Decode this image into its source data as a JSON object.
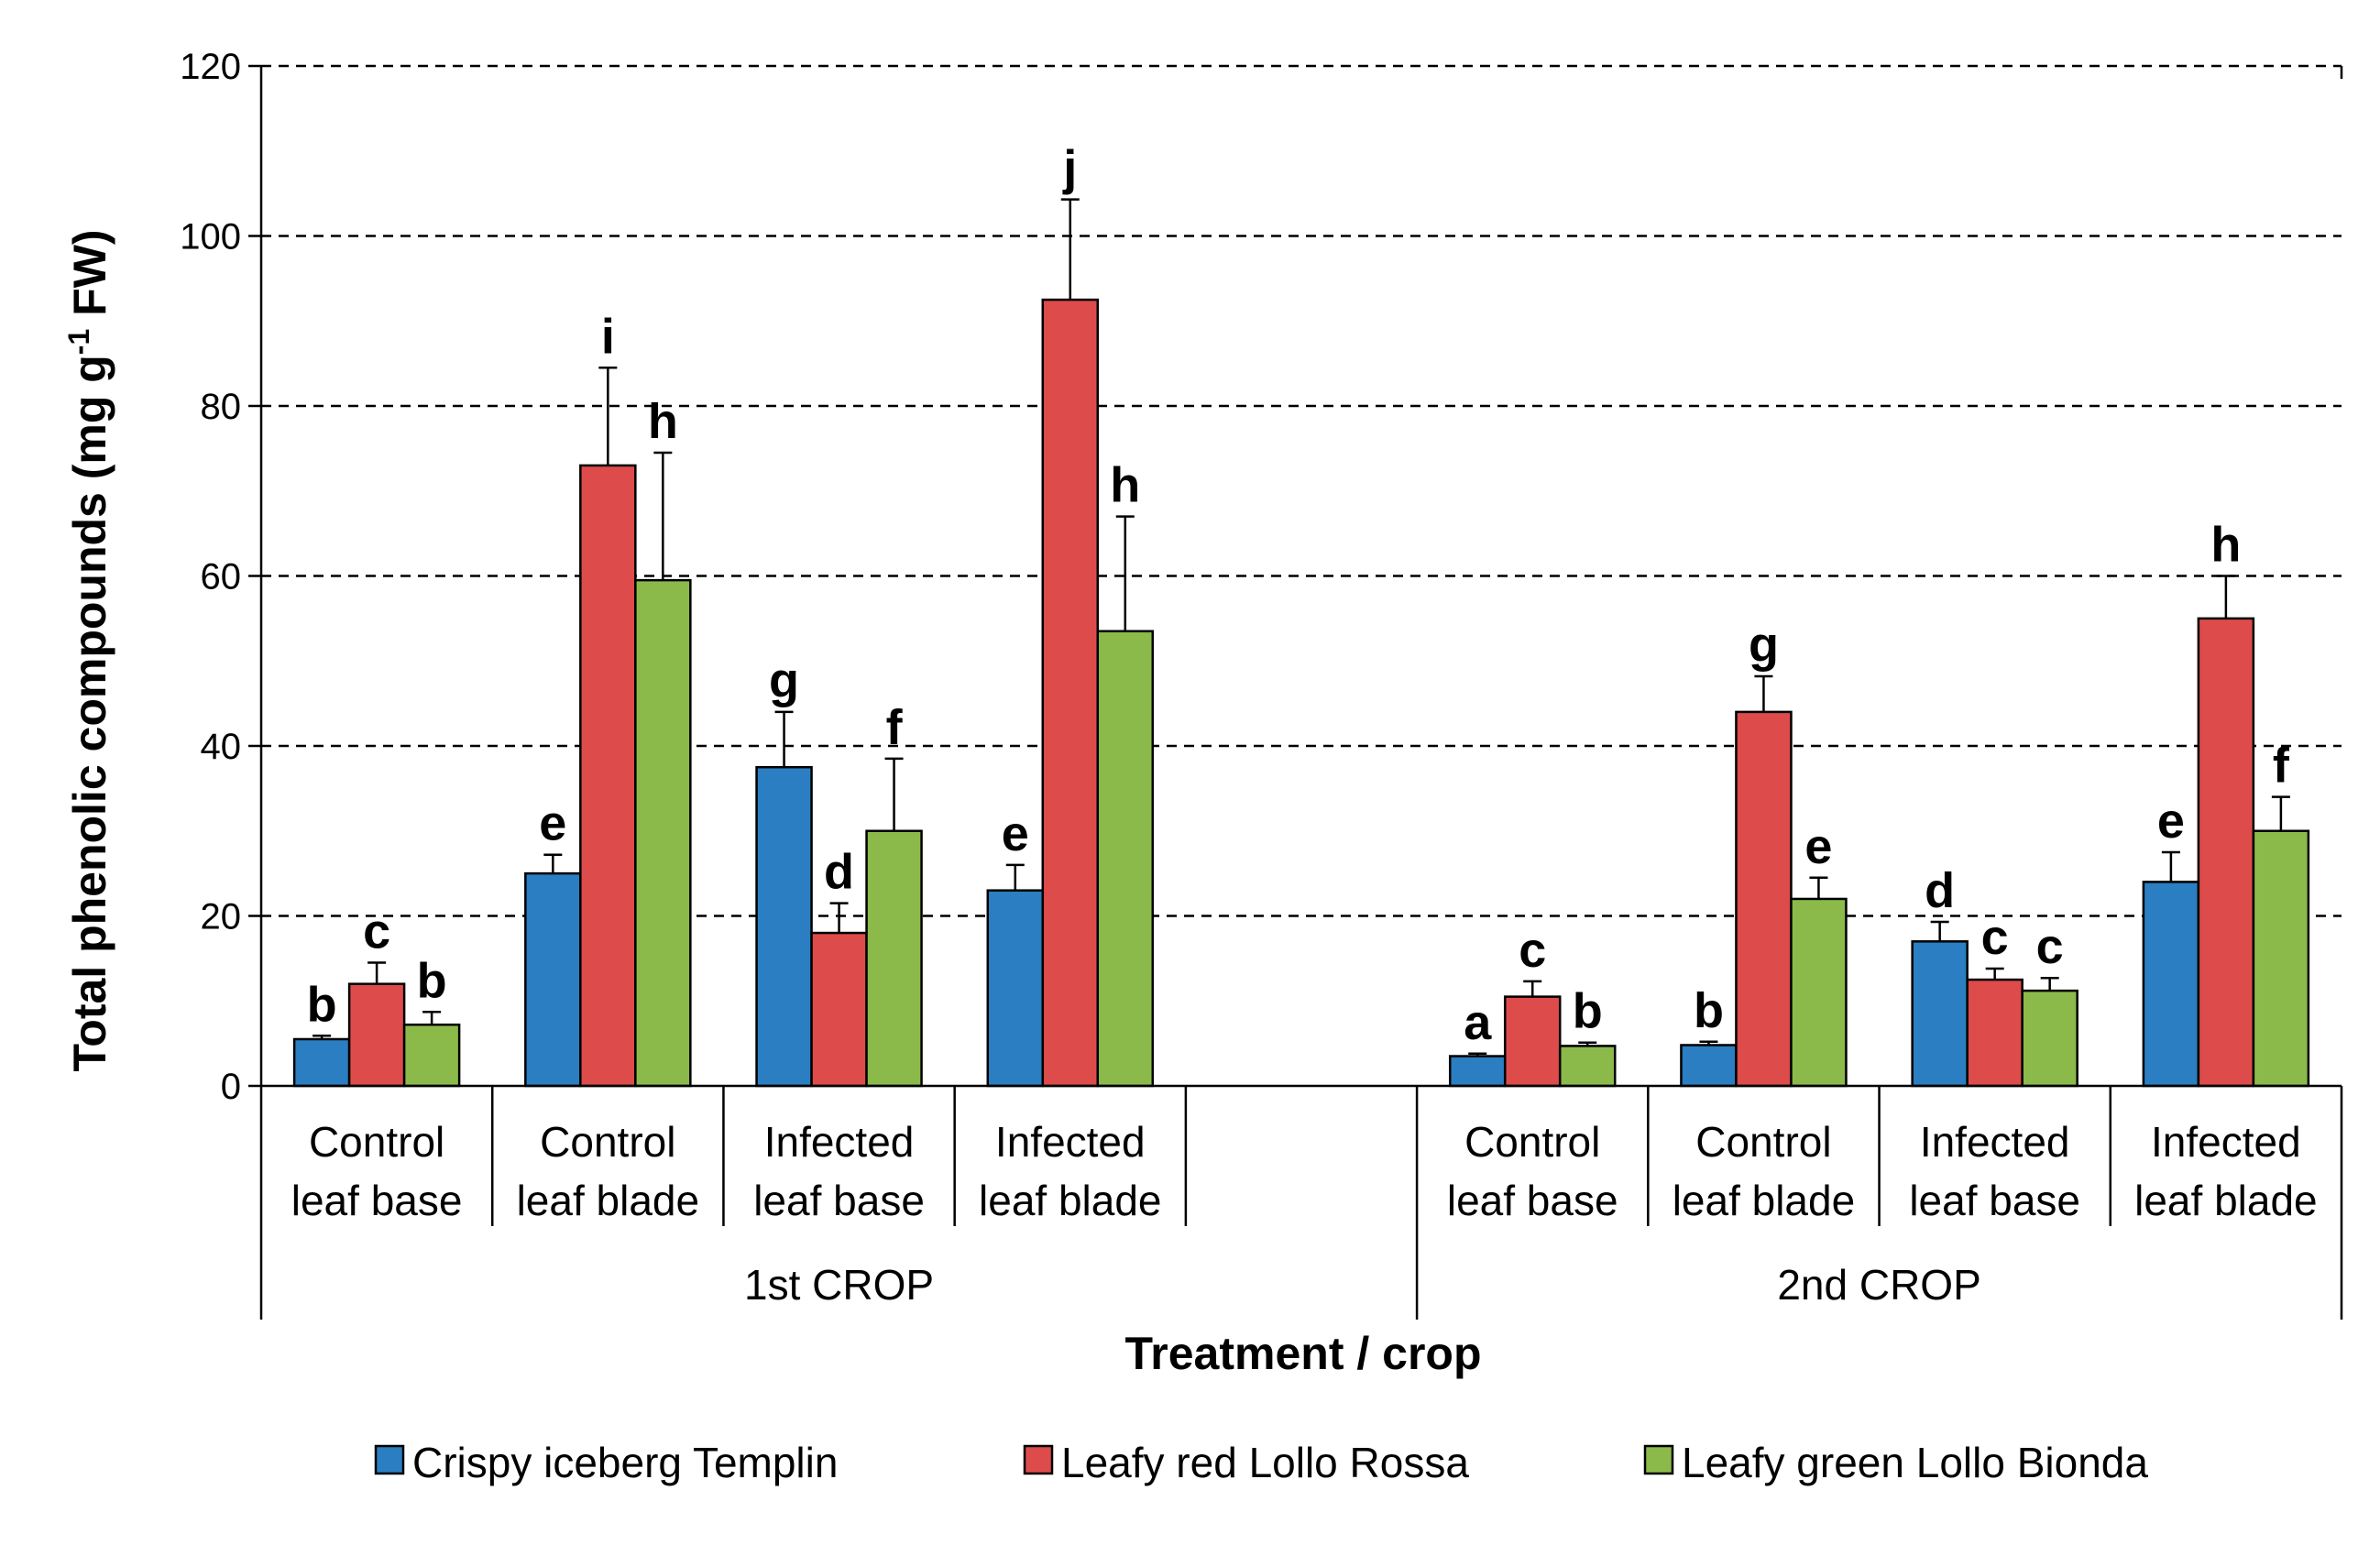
{
  "chart_data": {
    "type": "bar",
    "title": "",
    "xlabel": "Treatment / crop",
    "ylabel_main": "Total phenolic compounds (mg g",
    "ylabel_sup": "-1",
    "ylabel_tail": " FW)",
    "ylim": [
      0,
      120
    ],
    "yticks": [
      0,
      20,
      40,
      60,
      80,
      100,
      120
    ],
    "ytick_labels": [
      "0",
      "20",
      "40",
      "60",
      "80",
      "100",
      "120"
    ],
    "gridlines": "dashed",
    "legend_position": "bottom",
    "groups": [
      {
        "name": "1st CROP",
        "categories": [
          {
            "line1": "Control",
            "line2": "leaf base"
          },
          {
            "line1": "Control",
            "line2": "leaf blade"
          },
          {
            "line1": "Infected",
            "line2": "leaf base"
          },
          {
            "line1": "Infected",
            "line2": "leaf blade"
          }
        ]
      },
      {
        "name": "2nd CROP",
        "categories": [
          {
            "line1": "Control",
            "line2": "leaf base"
          },
          {
            "line1": "Control",
            "line2": "leaf blade"
          },
          {
            "line1": "Infected",
            "line2": "leaf base"
          },
          {
            "line1": "Infected",
            "line2": "leaf blade"
          }
        ]
      }
    ],
    "series": [
      {
        "name": "Crispy iceberg Templin",
        "color": "#2a7ec1",
        "values": [
          5.5,
          25,
          37.5,
          23,
          3.5,
          4.8,
          17,
          24
        ],
        "errors": [
          0.4,
          2.2,
          6.5,
          3,
          0.3,
          0.4,
          2.3,
          3.5
        ],
        "letters": [
          "b",
          "e",
          "g",
          "e",
          "a",
          "b",
          "d",
          "e"
        ]
      },
      {
        "name": "Leafy red Lollo Rossa",
        "color": "#dd4b4b",
        "values": [
          12,
          73,
          18,
          92.5,
          10.5,
          44,
          12.5,
          55
        ],
        "errors": [
          2.5,
          11.5,
          3.5,
          11.8,
          1.8,
          4.2,
          1.3,
          5
        ],
        "letters": [
          "c",
          "i",
          "d",
          "j",
          "c",
          "g",
          "c",
          "h"
        ]
      },
      {
        "name": "Leafy green Lollo Bionda",
        "color": "#8bba4b",
        "values": [
          7.2,
          59.5,
          30,
          53.5,
          4.7,
          22,
          11.2,
          30
        ],
        "errors": [
          1.5,
          15,
          8.5,
          13.5,
          0.4,
          2.5,
          1.5,
          4
        ],
        "letters": [
          "b",
          "h",
          "f",
          "h",
          "b",
          "e",
          "c",
          "f"
        ]
      }
    ]
  }
}
